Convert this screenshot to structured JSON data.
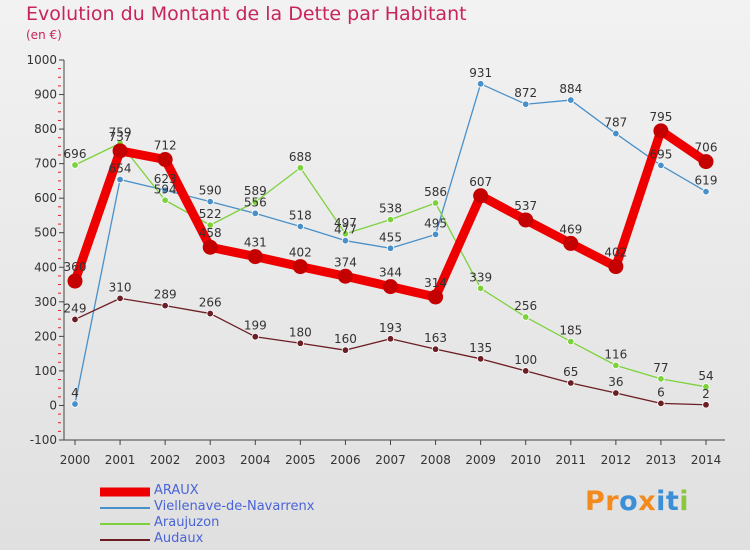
{
  "title": "Evolution du Montant de la Dette par Habitant",
  "subtitle": "(en €)",
  "brand": {
    "letters": [
      "P",
      "r",
      "o",
      "x",
      "i",
      "t",
      "i"
    ],
    "colors": [
      "#f28a1e",
      "#f28a1e",
      "#3a8fd6",
      "#f28a1e",
      "#3a8fd6",
      "#3a8fd6",
      "#8cc63f"
    ]
  },
  "chart_data": {
    "type": "line",
    "title": "Evolution du Montant de la Dette par Habitant",
    "subtitle": "(en €)",
    "x": [
      "2000",
      "2001",
      "2002",
      "2003",
      "2004",
      "2005",
      "2006",
      "2007",
      "2008",
      "2009",
      "2010",
      "2011",
      "2012",
      "2013",
      "2014"
    ],
    "ylim": [
      -100,
      1000
    ],
    "yticks": [
      -100,
      0,
      100,
      200,
      300,
      400,
      500,
      600,
      700,
      800,
      900,
      1000
    ],
    "grid": false,
    "legend_position": "bottom-left",
    "series": [
      {
        "name": "Viellenave-de-Navarrenx",
        "color": "#4a90c8",
        "values": [
          4,
          654,
          623,
          590,
          556,
          518,
          477,
          455,
          495,
          931,
          872,
          884,
          787,
          695,
          619
        ],
        "labels": [
          "4",
          "654",
          "623",
          "590",
          "556",
          "518",
          "477",
          "455",
          "495",
          "931",
          "872",
          "884",
          "787",
          "695",
          "619"
        ]
      },
      {
        "name": "Araujuzon",
        "color": "#7dd23c",
        "values": [
          696,
          759,
          594,
          522,
          589,
          688,
          497,
          538,
          586,
          339,
          256,
          185,
          116,
          77,
          54
        ],
        "labels": [
          "696",
          "759",
          "594",
          "522",
          "589",
          "688",
          "497",
          "538",
          "586",
          "339",
          "256",
          "185",
          "116",
          "77",
          "54"
        ]
      },
      {
        "name": "Audaux",
        "color": "#6b1e24",
        "values": [
          249,
          310,
          289,
          266,
          199,
          180,
          160,
          193,
          163,
          135,
          100,
          65,
          36,
          6,
          2
        ],
        "labels": [
          "249",
          "310",
          "289",
          "266",
          "199",
          "180",
          "160",
          "193",
          "163",
          "135",
          "100",
          "65",
          "36",
          "6",
          "2"
        ]
      },
      {
        "name": "ARAUX",
        "color": "#ee0000",
        "values": [
          360,
          737,
          712,
          458,
          431,
          402,
          374,
          344,
          314,
          607,
          537,
          469,
          402,
          795,
          706
        ],
        "labels": [
          "360",
          "737",
          "712",
          "458",
          "431",
          "402",
          "374",
          "344",
          "314",
          "607",
          "537",
          "469",
          "402",
          "795",
          "706"
        ]
      }
    ],
    "legend": [
      {
        "name": "ARAUX",
        "color": "#ee0000"
      },
      {
        "name": "Viellenave-de-Navarrenx",
        "color": "#4a90c8"
      },
      {
        "name": "Araujuzon",
        "color": "#7dd23c"
      },
      {
        "name": "Audaux",
        "color": "#6b1e24"
      }
    ]
  }
}
